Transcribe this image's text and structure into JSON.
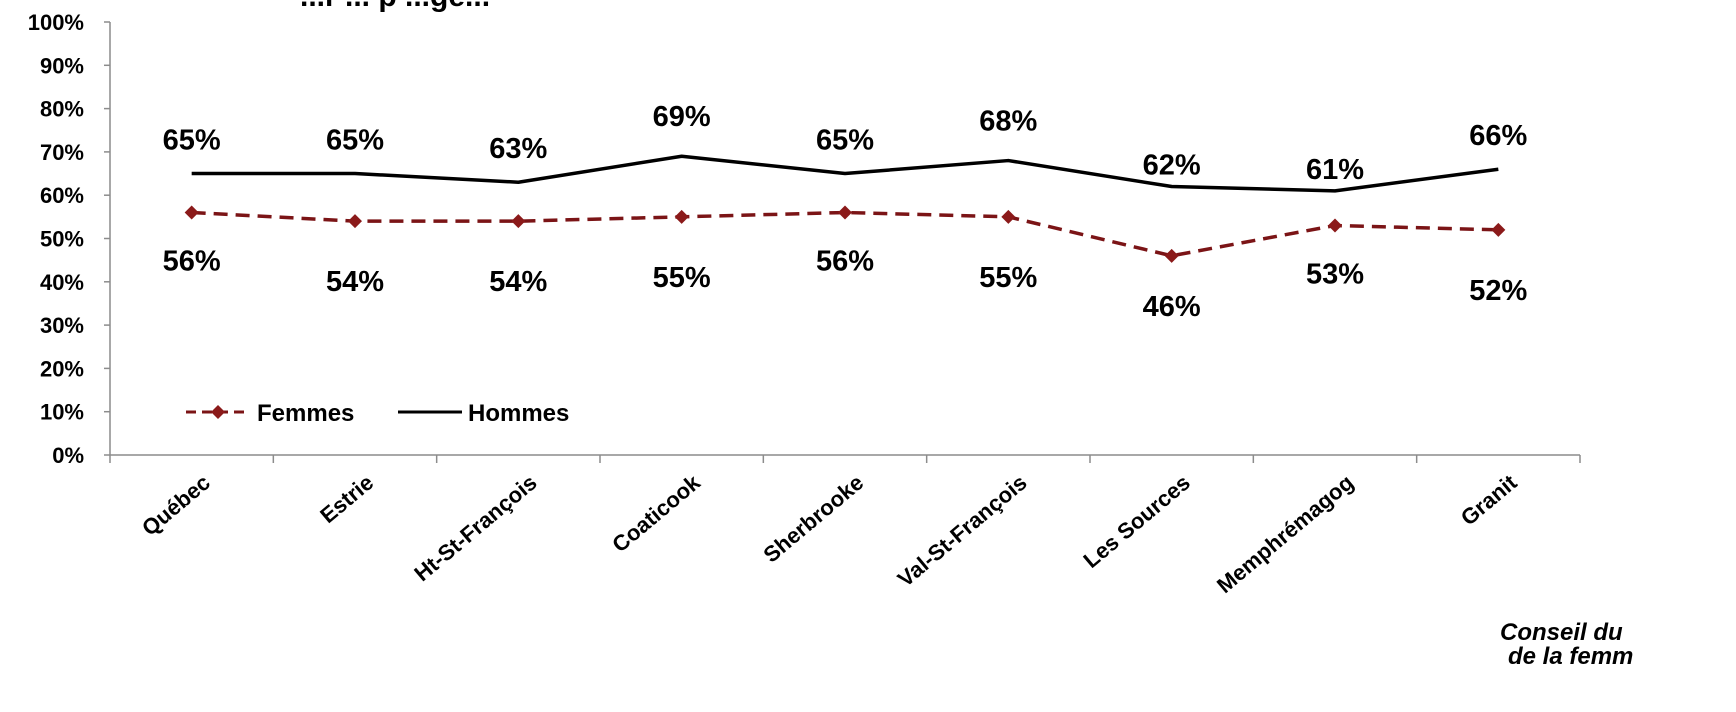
{
  "chart_data": {
    "type": "line",
    "title": "...r ... p ...ge...",
    "categories": [
      "Québec",
      "Estrie",
      "Ht-St-François",
      "Coaticook",
      "Sherbrooke",
      "Val-St-François",
      "Les Sources",
      "Memphrémagog",
      "Granit"
    ],
    "ylim": [
      0,
      100
    ],
    "yticks": [
      "0%",
      "10%",
      "20%",
      "30%",
      "40%",
      "50%",
      "60%",
      "70%",
      "80%",
      "90%",
      "100%"
    ],
    "grid": false,
    "legend_position": "bottom-left",
    "series": [
      {
        "name": "Femmes",
        "values": [
          56,
          54,
          54,
          55,
          56,
          55,
          46,
          53,
          52
        ],
        "labels": [
          "56%",
          "54%",
          "54%",
          "55%",
          "56%",
          "55%",
          "46%",
          "53%",
          "52%"
        ],
        "color": "#7b1416",
        "style": "dashed",
        "marker": "diamond"
      },
      {
        "name": "Hommes",
        "values": [
          65,
          65,
          63,
          69,
          65,
          68,
          62,
          61,
          66
        ],
        "labels": [
          "65%",
          "65%",
          "63%",
          "69%",
          "65%",
          "68%",
          "62%",
          "61%",
          "66%"
        ],
        "color": "#000000",
        "style": "solid",
        "marker": "none"
      }
    ]
  },
  "source": {
    "line1": "Conseil du",
    "line2": "de la femm"
  }
}
